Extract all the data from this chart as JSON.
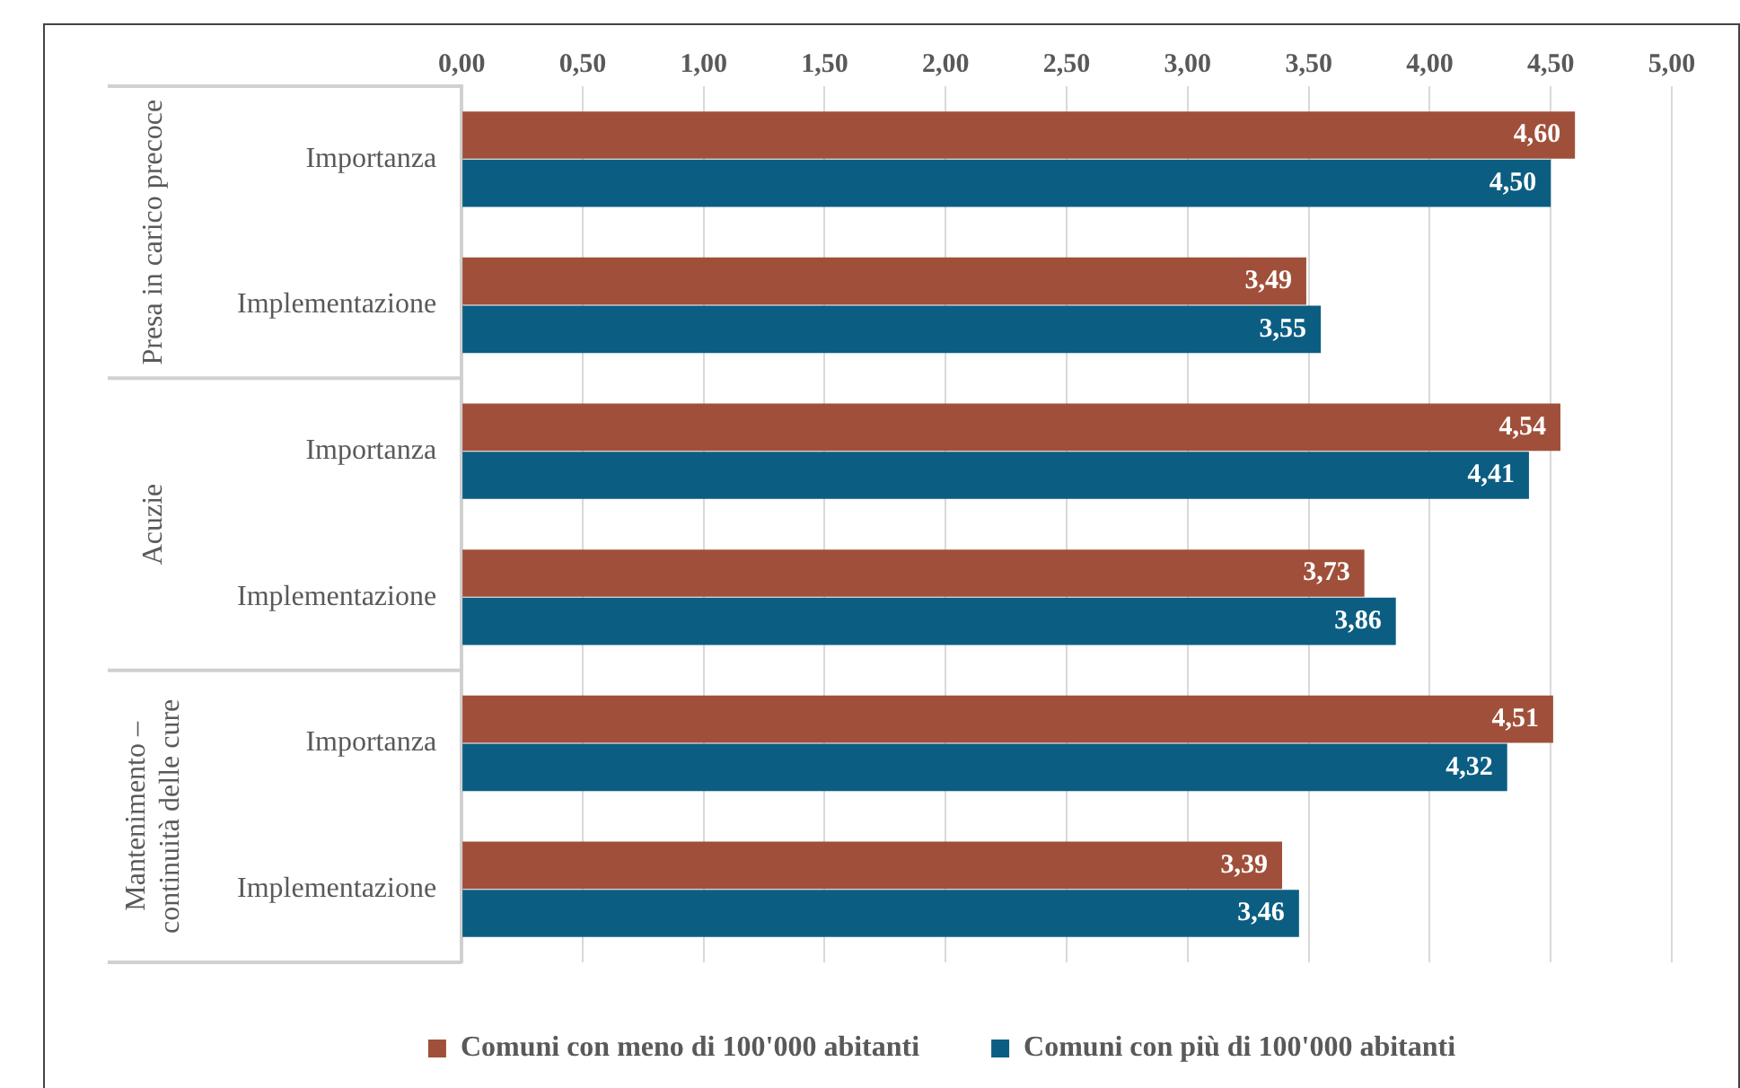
{
  "chart_data": {
    "type": "bar",
    "orientation": "horizontal",
    "categories": [
      "Importanza",
      "Implementazione",
      "Importanza",
      "Implementazione",
      "Importanza",
      "Implementazione"
    ],
    "series": [
      {
        "name": "Comuni con meno di 100'000 abitanti",
        "color": "#a0503a",
        "values": [
          4.6,
          3.49,
          4.54,
          3.73,
          4.51,
          3.39
        ],
        "value_labels": [
          "4,60",
          "3,49",
          "4,54",
          "3,73",
          "4,51",
          "3,39"
        ]
      },
      {
        "name": "Comuni con più di 100'000 abitanti",
        "color": "#0b5e82",
        "values": [
          4.5,
          3.55,
          4.41,
          3.86,
          4.32,
          3.46
        ],
        "value_labels": [
          "4,50",
          "3,55",
          "4,41",
          "3,86",
          "4,32",
          "3,46"
        ]
      }
    ],
    "annotations": [
      "Presa in carico precoce",
      "Acuzie",
      "Mantenimento – continuità delle cure"
    ],
    "xlim": [
      0,
      5
    ],
    "xticks": [
      {
        "value": 0,
        "label": "0,00"
      },
      {
        "value": 0.5,
        "label": "0,50"
      },
      {
        "value": 1,
        "label": "1,00"
      },
      {
        "value": 1.5,
        "label": "1,50"
      },
      {
        "value": 2,
        "label": "2,00"
      },
      {
        "value": 2.5,
        "label": "2,50"
      },
      {
        "value": 3,
        "label": "3,00"
      },
      {
        "value": 3.5,
        "label": "3,50"
      },
      {
        "value": 4,
        "label": "4,00"
      },
      {
        "value": 4.5,
        "label": "4,50"
      },
      {
        "value": 5,
        "label": "5,00"
      }
    ],
    "grid": "x",
    "legend": "bottom"
  }
}
